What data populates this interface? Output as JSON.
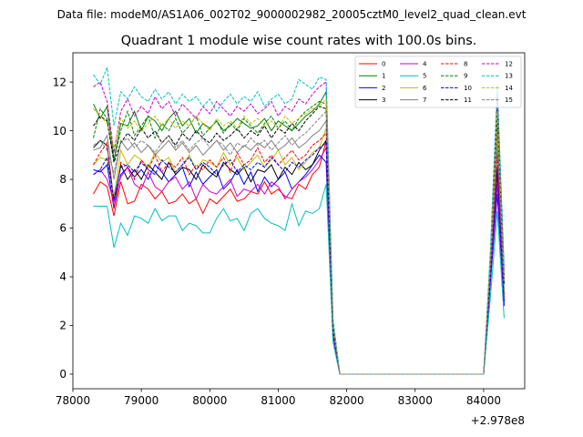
{
  "header": "Data file: modeM0/AS1A06_002T02_9000002982_20005cztM0_level2_quad_clean.evt",
  "chart_data": {
    "type": "line",
    "title": "Quadrant 1 module wise count rates with 100.0s bins.",
    "xlabel": "",
    "ylabel": "",
    "x_offset_label": "+2.978e8",
    "xlim": [
      78000,
      84600
    ],
    "ylim": [
      -0.6,
      13.2
    ],
    "x_ticks": [
      78000,
      79000,
      80000,
      81000,
      82000,
      83000,
      84000
    ],
    "y_ticks": [
      0,
      2,
      4,
      6,
      8,
      10,
      12
    ],
    "grid": false,
    "legend": {
      "placement": "top-right",
      "columns": 4
    },
    "x": [
      78300,
      78400,
      78500,
      78600,
      78700,
      78800,
      78900,
      79000,
      79100,
      79200,
      79300,
      79400,
      79500,
      79600,
      79700,
      79800,
      79900,
      80000,
      80100,
      80200,
      80300,
      80400,
      80500,
      80600,
      80700,
      80800,
      80900,
      81000,
      81100,
      81200,
      81300,
      81400,
      81500,
      81600,
      81700,
      81800,
      81900,
      82000,
      82100,
      82200,
      82300,
      82400,
      82500,
      82600,
      82700,
      82800,
      82900,
      83000,
      83100,
      83200,
      83300,
      83400,
      83500,
      83600,
      83700,
      83800,
      83900,
      84000,
      84100,
      84200,
      84300
    ],
    "series": [
      {
        "name": "0",
        "color": "#ff0000",
        "dash": "solid",
        "values": [
          7.4,
          7.9,
          7.7,
          6.5,
          7.9,
          7.0,
          7.1,
          7.8,
          7.6,
          7.2,
          7.5,
          7.0,
          7.1,
          7.4,
          7.0,
          7.2,
          6.6,
          7.2,
          7.0,
          7.3,
          7.6,
          7.1,
          7.2,
          7.5,
          7.4,
          7.9,
          7.4,
          7.6,
          7.3,
          7.2,
          7.8,
          7.6,
          8.2,
          8.5,
          9.6,
          1.6,
          0.0,
          0.0,
          0.0,
          0.0,
          0.0,
          0.0,
          0.0,
          0.0,
          0.0,
          0.0,
          0.0,
          0.0,
          0.0,
          0.0,
          0.0,
          0.0,
          0.0,
          0.0,
          0.0,
          0.0,
          0.0,
          0.0,
          4.0,
          8.2,
          3.4
        ]
      },
      {
        "name": "1",
        "color": "#008000",
        "dash": "solid",
        "values": [
          11.1,
          10.5,
          11.0,
          8.8,
          10.3,
          10.2,
          10.8,
          10.0,
          10.6,
          10.4,
          10.0,
          10.5,
          10.8,
          10.2,
          10.5,
          9.9,
          10.3,
          10.1,
          10.4,
          10.0,
          10.2,
          10.5,
          10.3,
          10.1,
          10.2,
          10.5,
          10.0,
          10.4,
          10.2,
          10.0,
          10.3,
          10.6,
          10.8,
          11.1,
          11.6,
          2.0,
          0.0,
          0.0,
          0.0,
          0.0,
          0.0,
          0.0,
          0.0,
          0.0,
          0.0,
          0.0,
          0.0,
          0.0,
          0.0,
          0.0,
          0.0,
          0.0,
          0.0,
          0.0,
          0.0,
          0.0,
          0.0,
          0.0,
          4.5,
          10.4,
          4.0
        ]
      },
      {
        "name": "2",
        "color": "#0000ff",
        "dash": "solid",
        "values": [
          8.4,
          8.3,
          8.6,
          6.8,
          8.2,
          8.5,
          8.1,
          8.4,
          8.0,
          8.6,
          8.3,
          7.9,
          8.2,
          8.5,
          7.7,
          8.3,
          7.8,
          8.1,
          8.4,
          7.6,
          7.9,
          8.4,
          7.8,
          8.3,
          7.5,
          8.1,
          7.7,
          8.0,
          8.3,
          7.6,
          7.9,
          8.2,
          8.6,
          9.0,
          8.7,
          1.6,
          0.0,
          0.0,
          0.0,
          0.0,
          0.0,
          0.0,
          0.0,
          0.0,
          0.0,
          0.0,
          0.0,
          0.0,
          0.0,
          0.0,
          0.0,
          0.0,
          0.0,
          0.0,
          0.0,
          0.0,
          0.0,
          0.0,
          3.8,
          7.4,
          2.8
        ]
      },
      {
        "name": "3",
        "color": "#000000",
        "dash": "solid",
        "values": [
          9.3,
          9.6,
          9.4,
          7.1,
          8.6,
          8.0,
          8.4,
          8.0,
          8.6,
          8.3,
          8.0,
          8.7,
          8.2,
          8.5,
          8.4,
          8.0,
          8.6,
          8.3,
          8.1,
          8.7,
          8.4,
          8.2,
          8.5,
          7.9,
          8.4,
          8.3,
          8.6,
          8.0,
          8.5,
          8.2,
          8.7,
          8.4,
          8.6,
          9.2,
          9.6,
          1.7,
          0.0,
          0.0,
          0.0,
          0.0,
          0.0,
          0.0,
          0.0,
          0.0,
          0.0,
          0.0,
          0.0,
          0.0,
          0.0,
          0.0,
          0.0,
          0.0,
          0.0,
          0.0,
          0.0,
          0.0,
          0.0,
          0.0,
          4.2,
          8.5,
          3.0
        ]
      },
      {
        "name": "4",
        "color": "#cc00cc",
        "dash": "solid",
        "values": [
          8.2,
          8.4,
          8.0,
          7.1,
          8.1,
          8.5,
          7.8,
          7.6,
          8.3,
          7.7,
          7.5,
          7.9,
          8.1,
          7.6,
          7.9,
          7.2,
          7.8,
          7.5,
          7.4,
          7.7,
          8.0,
          7.3,
          7.6,
          7.5,
          7.8,
          7.4,
          7.9,
          7.7,
          7.2,
          7.6,
          7.9,
          8.1,
          8.4,
          8.8,
          9.3,
          1.6,
          0.0,
          0.0,
          0.0,
          0.0,
          0.0,
          0.0,
          0.0,
          0.0,
          0.0,
          0.0,
          0.0,
          0.0,
          0.0,
          0.0,
          0.0,
          0.0,
          0.0,
          0.0,
          0.0,
          0.0,
          0.0,
          0.0,
          3.9,
          7.8,
          3.0
        ]
      },
      {
        "name": "5",
        "color": "#00bfbf",
        "dash": "solid",
        "values": [
          6.9,
          6.9,
          6.9,
          5.2,
          6.2,
          5.7,
          6.5,
          6.4,
          6.2,
          6.8,
          6.3,
          6.5,
          6.5,
          5.9,
          6.2,
          6.1,
          5.8,
          5.8,
          6.4,
          6.8,
          6.3,
          6.4,
          5.9,
          6.6,
          6.8,
          6.4,
          6.2,
          6.1,
          5.9,
          7.0,
          6.1,
          6.7,
          6.6,
          6.8,
          7.8,
          1.3,
          0.0,
          0.0,
          0.0,
          0.0,
          0.0,
          0.0,
          0.0,
          0.0,
          0.0,
          0.0,
          0.0,
          0.0,
          0.0,
          0.0,
          0.0,
          0.0,
          0.0,
          0.0,
          0.0,
          0.0,
          0.0,
          0.0,
          3.2,
          6.7,
          2.3
        ]
      },
      {
        "name": "6",
        "color": "#bfbf00",
        "dash": "solid",
        "values": [
          8.6,
          8.9,
          8.8,
          7.3,
          9.2,
          8.6,
          9.0,
          8.8,
          8.5,
          9.1,
          8.7,
          8.9,
          8.3,
          8.6,
          9.0,
          8.4,
          8.8,
          8.7,
          8.5,
          9.1,
          8.6,
          8.9,
          8.4,
          8.7,
          9.0,
          8.5,
          8.8,
          9.2,
          8.6,
          8.9,
          8.4,
          8.7,
          9.1,
          9.3,
          10.1,
          1.8,
          0.0,
          0.0,
          0.0,
          0.0,
          0.0,
          0.0,
          0.0,
          0.0,
          0.0,
          0.0,
          0.0,
          0.0,
          0.0,
          0.0,
          0.0,
          0.0,
          0.0,
          0.0,
          0.0,
          0.0,
          0.0,
          0.0,
          4.3,
          9.2,
          3.3
        ]
      },
      {
        "name": "7",
        "color": "#808080",
        "dash": "solid",
        "values": [
          9.2,
          9.3,
          9.8,
          8.0,
          9.6,
          9.2,
          9.5,
          9.1,
          9.4,
          9.0,
          9.3,
          9.6,
          9.2,
          9.5,
          9.1,
          9.4,
          9.0,
          9.3,
          9.6,
          9.2,
          9.5,
          9.1,
          9.4,
          9.2,
          9.5,
          9.3,
          9.6,
          9.2,
          9.4,
          9.7,
          9.3,
          9.5,
          9.8,
          10.0,
          10.4,
          1.9,
          0.0,
          0.0,
          0.0,
          0.0,
          0.0,
          0.0,
          0.0,
          0.0,
          0.0,
          0.0,
          0.0,
          0.0,
          0.0,
          0.0,
          0.0,
          0.0,
          0.0,
          0.0,
          0.0,
          0.0,
          0.0,
          0.0,
          4.4,
          9.4,
          3.3
        ]
      },
      {
        "name": "8",
        "color": "#ff0000",
        "dash": "dashed",
        "values": [
          8.6,
          9.1,
          9.5,
          6.8,
          8.7,
          8.5,
          8.0,
          8.8,
          8.4,
          9.0,
          8.3,
          8.7,
          8.5,
          8.9,
          8.2,
          8.6,
          8.4,
          8.8,
          8.5,
          8.9,
          8.3,
          9.1,
          8.6,
          8.8,
          9.3,
          8.7,
          9.0,
          8.6,
          8.9,
          9.2,
          8.8,
          9.0,
          9.4,
          9.6,
          9.9,
          1.8,
          0.0,
          0.0,
          0.0,
          0.0,
          0.0,
          0.0,
          0.0,
          0.0,
          0.0,
          0.0,
          0.0,
          0.0,
          0.0,
          0.0,
          0.0,
          0.0,
          0.0,
          0.0,
          0.0,
          0.0,
          0.0,
          0.0,
          4.1,
          9.0,
          3.2
        ]
      },
      {
        "name": "9",
        "color": "#008000",
        "dash": "dashed",
        "values": [
          9.7,
          10.9,
          10.5,
          8.8,
          10.0,
          10.8,
          9.8,
          10.2,
          10.6,
          9.7,
          10.3,
          10.0,
          10.5,
          9.9,
          10.2,
          10.6,
          9.8,
          10.1,
          10.4,
          9.9,
          10.3,
          10.0,
          10.5,
          10.2,
          9.9,
          10.3,
          10.6,
          10.1,
          10.4,
          10.0,
          10.5,
          10.8,
          11.0,
          11.2,
          11.1,
          2.1,
          0.0,
          0.0,
          0.0,
          0.0,
          0.0,
          0.0,
          0.0,
          0.0,
          0.0,
          0.0,
          0.0,
          0.0,
          0.0,
          0.0,
          0.0,
          0.0,
          0.0,
          0.0,
          0.0,
          0.0,
          0.0,
          0.0,
          4.6,
          10.6,
          3.8
        ]
      },
      {
        "name": "10",
        "color": "#0000ff",
        "dash": "dashed",
        "values": [
          8.2,
          8.4,
          8.9,
          7.2,
          8.5,
          8.6,
          8.3,
          8.7,
          8.4,
          8.2,
          8.8,
          8.5,
          8.3,
          8.6,
          8.9,
          8.4,
          8.7,
          8.5,
          8.2,
          8.6,
          8.8,
          8.3,
          8.6,
          8.4,
          8.7,
          8.5,
          8.9,
          8.6,
          8.3,
          8.7,
          8.5,
          8.8,
          9.0,
          9.3,
          9.5,
          1.7,
          0.0,
          0.0,
          0.0,
          0.0,
          0.0,
          0.0,
          0.0,
          0.0,
          0.0,
          0.0,
          0.0,
          0.0,
          0.0,
          0.0,
          0.0,
          0.0,
          0.0,
          0.0,
          0.0,
          0.0,
          0.0,
          0.0,
          4.0,
          8.4,
          2.9
        ]
      },
      {
        "name": "11",
        "color": "#000000",
        "dash": "dashed",
        "values": [
          10.2,
          10.6,
          10.4,
          8.7,
          9.5,
          9.9,
          9.6,
          10.1,
          9.7,
          10.0,
          9.5,
          9.8,
          9.4,
          9.9,
          9.6,
          10.0,
          9.7,
          9.5,
          9.9,
          9.6,
          9.8,
          10.1,
          9.7,
          10.0,
          9.8,
          10.2,
          9.7,
          10.1,
          9.9,
          10.3,
          10.0,
          10.4,
          10.7,
          11.0,
          10.9,
          1.9,
          0.0,
          0.0,
          0.0,
          0.0,
          0.0,
          0.0,
          0.0,
          0.0,
          0.0,
          0.0,
          0.0,
          0.0,
          0.0,
          0.0,
          0.0,
          0.0,
          0.0,
          0.0,
          0.0,
          0.0,
          0.0,
          0.0,
          4.7,
          10.9,
          3.7
        ]
      },
      {
        "name": "12",
        "color": "#cc00cc",
        "dash": "dashed",
        "values": [
          11.8,
          12.0,
          11.2,
          9.1,
          10.8,
          11.3,
          10.6,
          11.0,
          10.7,
          11.4,
          10.9,
          11.2,
          10.6,
          11.1,
          10.8,
          10.5,
          11.0,
          10.7,
          11.2,
          10.9,
          10.6,
          11.0,
          10.8,
          11.1,
          10.7,
          10.9,
          11.2,
          10.6,
          11.0,
          10.8,
          11.3,
          11.1,
          11.5,
          11.8,
          12.0,
          2.2,
          0.0,
          0.0,
          0.0,
          0.0,
          0.0,
          0.0,
          0.0,
          0.0,
          0.0,
          0.0,
          0.0,
          0.0,
          0.0,
          0.0,
          0.0,
          0.0,
          0.0,
          0.0,
          0.0,
          0.0,
          0.0,
          0.0,
          5.0,
          11.5,
          4.2
        ]
      },
      {
        "name": "13",
        "color": "#00bfbf",
        "dash": "dashed",
        "values": [
          12.3,
          11.9,
          12.6,
          10.2,
          11.6,
          11.3,
          11.8,
          11.4,
          11.2,
          11.7,
          11.3,
          11.6,
          11.1,
          11.5,
          11.2,
          11.4,
          11.0,
          11.3,
          10.8,
          11.2,
          11.5,
          11.1,
          11.4,
          11.2,
          11.6,
          11.0,
          11.3,
          11.5,
          11.1,
          11.3,
          12.1,
          11.9,
          11.7,
          12.2,
          12.1,
          2.3,
          0.0,
          0.0,
          0.0,
          0.0,
          0.0,
          0.0,
          0.0,
          0.0,
          0.0,
          0.0,
          0.0,
          0.0,
          0.0,
          0.0,
          0.0,
          0.0,
          0.0,
          0.0,
          0.0,
          0.0,
          0.0,
          0.0,
          5.2,
          11.9,
          4.4
        ]
      },
      {
        "name": "14",
        "color": "#bfbf00",
        "dash": "dashed",
        "values": [
          10.9,
          10.6,
          10.3,
          9.3,
          10.5,
          10.1,
          10.4,
          10.0,
          10.3,
          10.6,
          10.2,
          10.5,
          10.1,
          10.4,
          10.2,
          10.6,
          10.3,
          10.0,
          10.5,
          10.2,
          10.4,
          10.1,
          10.6,
          10.3,
          10.5,
          10.2,
          10.4,
          10.1,
          10.6,
          10.3,
          10.5,
          10.7,
          10.9,
          11.0,
          11.3,
          2.1,
          0.0,
          0.0,
          0.0,
          0.0,
          0.0,
          0.0,
          0.0,
          0.0,
          0.0,
          0.0,
          0.0,
          0.0,
          0.0,
          0.0,
          0.0,
          0.0,
          0.0,
          0.0,
          0.0,
          0.0,
          0.0,
          0.0,
          4.8,
          10.8,
          3.9
        ]
      },
      {
        "name": "15",
        "color": "#808080",
        "dash": "dashed",
        "values": [
          9.4,
          9.6,
          9.2,
          8.3,
          9.5,
          9.7,
          9.3,
          9.6,
          9.4,
          9.1,
          9.5,
          9.8,
          9.3,
          9.6,
          9.2,
          9.5,
          9.7,
          9.3,
          9.6,
          9.4,
          9.0,
          9.5,
          9.3,
          9.7,
          9.4,
          9.6,
          9.2,
          9.5,
          9.8,
          9.4,
          9.7,
          9.9,
          10.2,
          10.5,
          10.8,
          1.9,
          0.0,
          0.0,
          0.0,
          0.0,
          0.0,
          0.0,
          0.0,
          0.0,
          0.0,
          0.0,
          0.0,
          0.0,
          0.0,
          0.0,
          0.0,
          0.0,
          0.0,
          0.0,
          0.0,
          0.0,
          0.0,
          0.0,
          4.5,
          9.8,
          3.4
        ]
      }
    ]
  }
}
